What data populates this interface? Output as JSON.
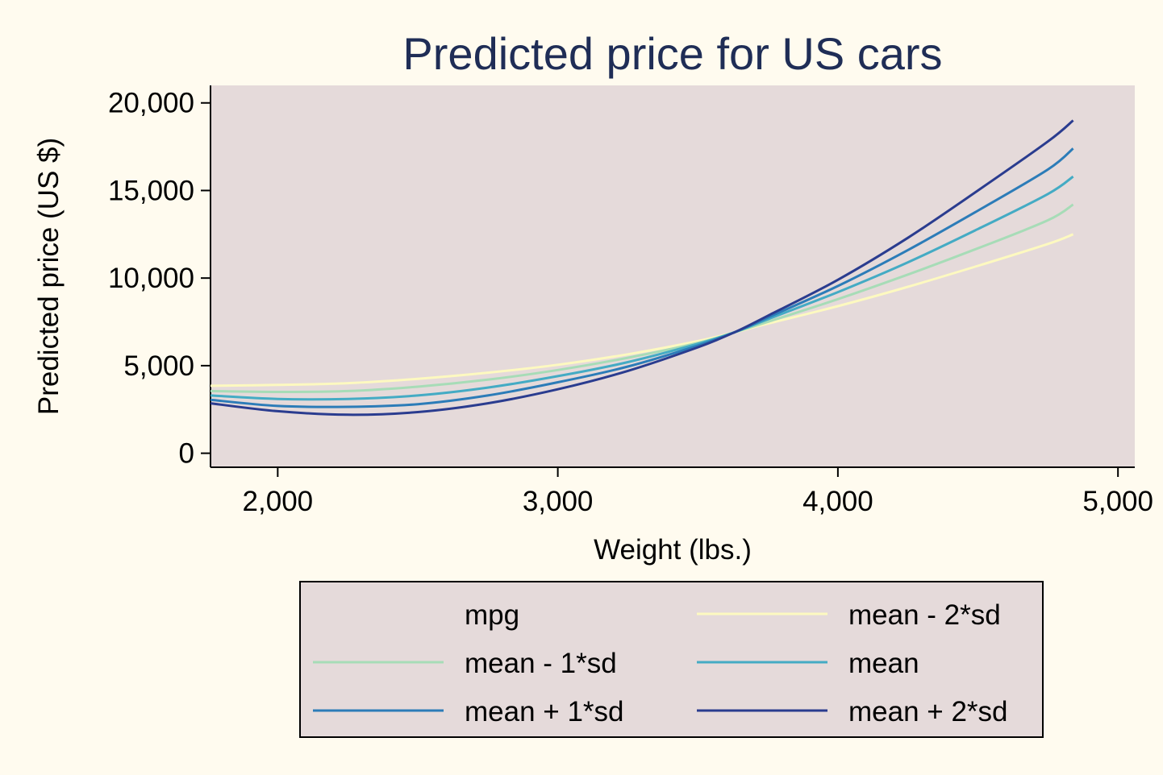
{
  "chart_data": {
    "type": "line",
    "title": "Predicted price for US cars",
    "xlabel": "Weight (lbs.)",
    "ylabel": "Predicted price (US $)",
    "xlim": [
      1760,
      5060
    ],
    "ylim": [
      -800,
      21000
    ],
    "xticks": [
      {
        "value": 2000,
        "label": "2,000"
      },
      {
        "value": 3000,
        "label": "3,000"
      },
      {
        "value": 4000,
        "label": "4,000"
      },
      {
        "value": 5000,
        "label": "5,000"
      }
    ],
    "yticks": [
      {
        "value": 0,
        "label": "0"
      },
      {
        "value": 5000,
        "label": "5,000"
      },
      {
        "value": 10000,
        "label": "10,000"
      },
      {
        "value": 15000,
        "label": "15,000"
      },
      {
        "value": 20000,
        "label": "20,000"
      }
    ],
    "grid": false,
    "legend": {
      "title": "mpg",
      "placement": "bottom",
      "columns": 2
    },
    "x": [
      1760,
      2000,
      2250,
      2500,
      2750,
      3000,
      3250,
      3500,
      3630,
      3750,
      4000,
      4250,
      4500,
      4750,
      4840
    ],
    "series": [
      {
        "name": "mean - 2*sd",
        "color": "#fdf9c0",
        "values": [
          3850,
          3900,
          4000,
          4250,
          4600,
          5050,
          5650,
          6400,
          6900,
          7400,
          8400,
          9500,
          10700,
          11950,
          12500
        ]
      },
      {
        "name": "mean - 1*sd",
        "color": "#a7dcb7",
        "values": [
          3550,
          3500,
          3550,
          3800,
          4200,
          4750,
          5450,
          6300,
          6900,
          7500,
          8800,
          10200,
          11700,
          13300,
          14200
        ]
      },
      {
        "name": "mean",
        "color": "#44abc4",
        "values": [
          3300,
          3100,
          3100,
          3300,
          3750,
          4400,
          5200,
          6250,
          6900,
          7650,
          9200,
          10900,
          12800,
          14800,
          15800
        ]
      },
      {
        "name": "mean + 1*sd",
        "color": "#2c7cb8",
        "values": [
          3050,
          2700,
          2650,
          2800,
          3300,
          4050,
          4950,
          6150,
          6900,
          7750,
          9550,
          11600,
          13850,
          16200,
          17400
        ]
      },
      {
        "name": "mean + 2*sd",
        "color": "#2a3c8f",
        "values": [
          2850,
          2400,
          2200,
          2350,
          2850,
          3650,
          4700,
          6050,
          6900,
          7850,
          9900,
          12300,
          15000,
          17800,
          19000
        ]
      }
    ]
  },
  "colors": {
    "background": "#fffbef",
    "plot_region": "#e5dada",
    "title": "#1f2d56",
    "legend_background": "#e5dada"
  }
}
